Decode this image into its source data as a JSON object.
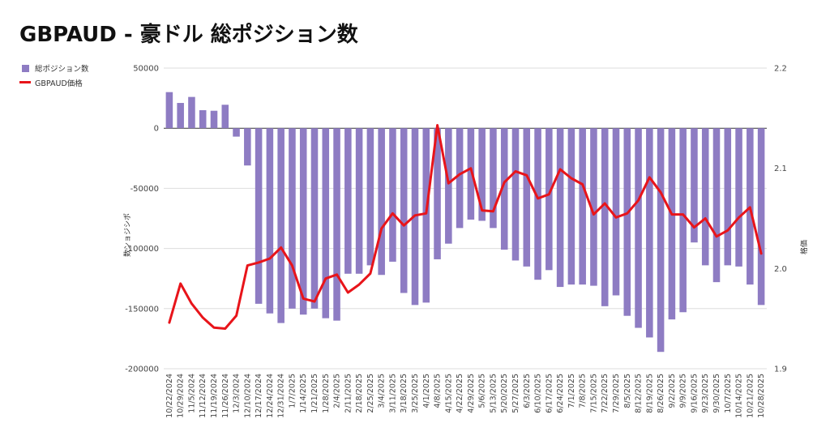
{
  "chart_data": {
    "type": "bar+line",
    "title": "GBPAUD - 豪ドル 総ポジション数",
    "legend": [
      {
        "name": "総ポジション数",
        "color": "#8E7CC3",
        "kind": "bar"
      },
      {
        "name": "GBPAUD価格",
        "color": "#E8141A",
        "kind": "line"
      }
    ],
    "legend_position": "top-left",
    "y_left": {
      "label": "数ンョジシポ",
      "min": -200000,
      "max": 50000,
      "ticks": [
        50000,
        0,
        -50000,
        -100000,
        -150000,
        -200000
      ],
      "tick_labels": [
        "50000",
        "0",
        "-50000",
        "-100000",
        "-150000",
        "-200000"
      ]
    },
    "y_right": {
      "label": "格価",
      "min": 1.9,
      "max": 2.2,
      "ticks": [
        2.2,
        2.1,
        2.0,
        1.9
      ],
      "tick_labels": [
        "2.2",
        "2.1",
        "2.0",
        "1.9"
      ]
    },
    "grid": true,
    "categories": [
      "10/22/2024",
      "10/29/2024",
      "11/5/2024",
      "11/12/2024",
      "11/19/2024",
      "11/26/2024",
      "12/3/2024",
      "12/10/2024",
      "12/17/2024",
      "12/24/2024",
      "12/31/2024",
      "1/7/2025",
      "1/14/2025",
      "1/21/2025",
      "1/28/2025",
      "2/4/2025",
      "2/11/2025",
      "2/18/2025",
      "2/25/2025",
      "3/4/2025",
      "3/11/2025",
      "3/18/2025",
      "3/25/2025",
      "4/1/2025",
      "4/8/2025",
      "4/15/2025",
      "4/22/2025",
      "4/29/2025",
      "5/6/2025",
      "5/13/2025",
      "5/20/2025",
      "5/27/2025",
      "6/3/2025",
      "6/10/2025",
      "6/17/2025",
      "6/24/2025",
      "7/1/2025",
      "7/8/2025",
      "7/15/2025",
      "7/22/2025",
      "7/29/2025",
      "8/5/2025",
      "8/12/2025",
      "8/19/2025",
      "8/26/2025",
      "9/2/2025",
      "9/9/2025",
      "9/16/2025",
      "9/23/2025",
      "9/30/2025",
      "10/7/2025",
      "10/14/2025",
      "10/21/2025",
      "10/28/2025"
    ],
    "x_tick_labels": [
      "10/22/2024",
      "10/29/2024",
      "11/5/2024",
      "11/12/2024",
      "11/19/2024",
      "11/26/2024",
      "12/3/2024",
      "12/10/2024",
      "12/17/2024",
      "12/24/2024",
      "12/31/2024",
      "1/7/2025",
      "1/14/2025",
      "1/21/2025",
      "1/28/2025",
      "2/4/2025",
      "2/11/2025",
      "2/18/2025",
      "2/25/2025",
      "3/4/2025",
      "3/11/2025",
      "3/18/2025",
      "3/25/2025",
      "4/1/2025",
      "4/8/2025",
      "4/15/2025",
      "4/22/2025",
      "4/29/2025",
      "5/6/2025",
      "5/13/2025",
      "5/20/2025",
      "5/27/2025",
      "6/3/2025",
      "6/10/2025",
      "6/17/2025",
      "6/24/2025",
      "7/1/2025",
      "7/8/2025",
      "7/15/2025",
      "7/22/2025",
      "7/29/2025",
      "8/5/2025",
      "8/12/2025",
      "8/19/2025",
      "8/26/2025",
      "9/2/2025",
      "9/9/2025",
      "9/16/2025",
      "9/23/2025",
      "9/30/2025",
      "10/7/2025",
      "10/14/2025",
      "10/21/2025",
      "10/28/2025"
    ],
    "series": [
      {
        "name": "総ポジション数",
        "axis": "left",
        "type": "bar",
        "color": "#8E7CC3",
        "values": [
          30000,
          21000,
          26000,
          15000,
          14500,
          19500,
          -7000,
          -31000,
          -146000,
          -154000,
          -162000,
          -150000,
          -155000,
          -150000,
          -158000,
          -160000,
          -121000,
          -121000,
          -114000,
          -122000,
          -111000,
          -137000,
          -147000,
          -145000,
          -109000,
          -96000,
          -83000,
          -76000,
          -77000,
          -83000,
          -101000,
          -110000,
          -115000,
          -126000,
          -118000,
          -132000,
          -130000,
          -130000,
          -131000,
          -148000,
          -139000,
          -156000,
          -166000,
          -174000,
          -186000,
          -159000,
          -153000,
          -95000,
          -114000,
          -128000,
          -114000,
          -115000,
          -130000,
          -147000
        ]
      },
      {
        "name": "GBPAUD価格",
        "axis": "right",
        "type": "line",
        "color": "#E8141A",
        "values": [
          1.946,
          1.985,
          1.965,
          1.951,
          1.941,
          1.94,
          1.953,
          2.003,
          2.006,
          2.01,
          2.021,
          2.003,
          1.97,
          1.967,
          1.99,
          1.994,
          1.976,
          1.984,
          1.995,
          2.04,
          2.055,
          2.043,
          2.053,
          2.055,
          2.143,
          2.085,
          2.094,
          2.1,
          2.058,
          2.057,
          2.086,
          2.097,
          2.093,
          2.07,
          2.074,
          2.099,
          2.09,
          2.084,
          2.054,
          2.065,
          2.051,
          2.055,
          2.068,
          2.091,
          2.076,
          2.054,
          2.054,
          2.041,
          2.05,
          2.032,
          2.038,
          2.051,
          2.061,
          2.015
        ]
      }
    ]
  }
}
